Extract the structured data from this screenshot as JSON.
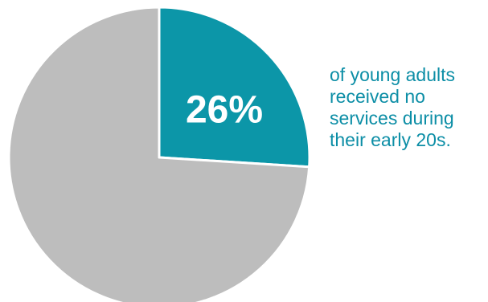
{
  "chart_data": {
    "type": "pie",
    "categories": [
      "26%",
      ""
    ],
    "values": [
      26,
      74
    ],
    "colors": [
      "#0c96a8",
      "#bdbdbd"
    ],
    "start_angle_deg": 0,
    "direction": "clockwise",
    "data_labels": [
      "26%",
      ""
    ],
    "annotation_lines": [
      "of young adults",
      "received no",
      "services during",
      "their early 20s."
    ]
  },
  "colors": {
    "caption_text": "#0c8ea6",
    "slice_label_text": "#ffffff",
    "slice_border": "#ffffff"
  }
}
